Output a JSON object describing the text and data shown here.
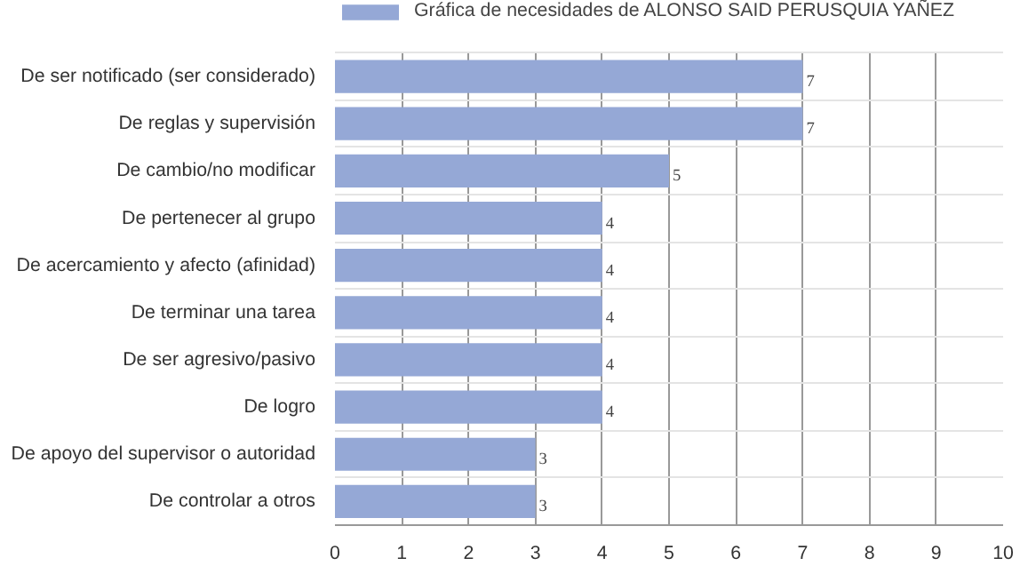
{
  "chart_data": {
    "type": "bar",
    "orientation": "horizontal",
    "categories": [
      "De ser notificado (ser considerado)",
      "De reglas y supervisión",
      "De cambio/no modificar",
      "De pertenecer al grupo",
      "De acercamiento y afecto (afinidad)",
      "De terminar una tarea",
      "De ser agresivo/pasivo",
      "De logro",
      "De apoyo del supervisor o autoridad",
      "De controlar a otros"
    ],
    "series": [
      {
        "name": "Gráfica de necesidades de ALONSO SAID PERUSQUIA YAÑEZ",
        "color": "#95a8d6",
        "values": [
          7,
          7,
          5,
          4,
          4,
          4,
          4,
          4,
          3,
          3
        ]
      }
    ],
    "xlim": [
      0,
      10
    ],
    "xticks": [
      0,
      1,
      2,
      3,
      4,
      5,
      6,
      7,
      8,
      9,
      10
    ],
    "grid": true,
    "legend": "top",
    "data_labels": true
  }
}
